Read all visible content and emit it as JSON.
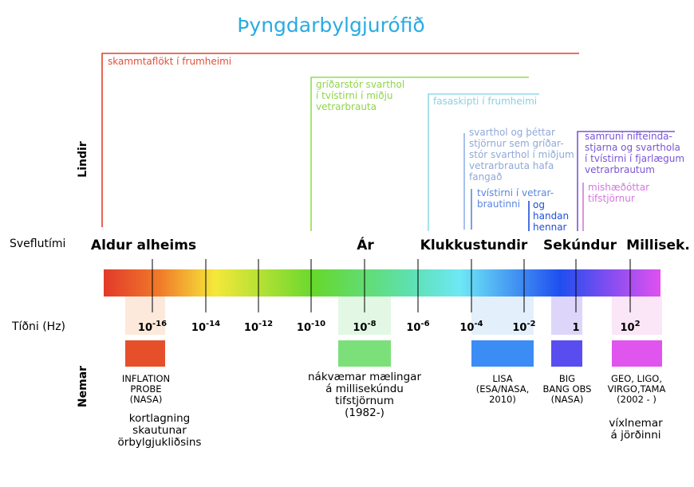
{
  "title": "Þyngdarbylgjurófið",
  "axis_labels": {
    "sources": "Lindir",
    "period": "Sveflutími",
    "frequency": "Tíðni (Hz)",
    "detectors": "Nemar"
  },
  "periods": [
    "Aldur alheims",
    "Ár",
    "Klukkustundir",
    "Sekúndur",
    "Millisek."
  ],
  "frequency_ticks": [
    {
      "base": "10",
      "exponent": "-16"
    },
    {
      "base": "10",
      "exponent": "-14"
    },
    {
      "base": "10",
      "exponent": "-12"
    },
    {
      "base": "10",
      "exponent": "-10"
    },
    {
      "base": "10",
      "exponent": "-8"
    },
    {
      "base": "10",
      "exponent": "-6"
    },
    {
      "base": "10",
      "exponent": "-4"
    },
    {
      "base": "10",
      "exponent": "-2"
    },
    {
      "base": "1"
    },
    {
      "base": "10",
      "exponent": "2"
    }
  ],
  "sources": [
    {
      "lines": [
        "skammtaflökt í frumheimi"
      ]
    },
    {
      "lines": [
        "gríðarstór svarthol",
        "í tvístirni í miðju",
        "vetrarbrauta"
      ]
    },
    {
      "lines": [
        "fasaskipti í frumheimi"
      ]
    },
    {
      "lines": [
        "svarthol og þéttar",
        "stjörnur sem gríðar-",
        "stór svarthol í miðjum",
        "vetrarbrauta hafa",
        "fangað"
      ]
    },
    {
      "lines": [
        "tvístirni í vetrar-",
        "brautinni"
      ]
    },
    {
      "lines": [
        "og",
        "handan",
        "hennar"
      ]
    },
    {
      "lines": [
        "samruni nifteinda-",
        "stjarna og svarthola",
        "í tvístirni í fjarlægum",
        "vetrarbrautum"
      ]
    },
    {
      "lines": [
        "mishæðóttar",
        "tifstjörnur"
      ]
    }
  ],
  "detectors": [
    {
      "lines": [
        "INFLATION",
        "PROBE",
        "(NASA)"
      ]
    },
    {
      "lines": [
        "nákvæmar mælingar",
        "á millisekúndu",
        "tifstjörnum",
        "(1982-)"
      ]
    },
    {
      "lines": [
        "LISA",
        "(ESA/NASA,",
        "2010)"
      ]
    },
    {
      "lines": [
        "BIG",
        "BANG OBS",
        "(NASA)"
      ]
    },
    {
      "lines": [
        "GEO, LIGO,",
        "VIRGO,TAMA",
        "(2002 - )"
      ]
    }
  ],
  "detector_notes": [
    {
      "lines": [
        "kortlagning",
        "skautunar",
        "örbylgjukliðsins"
      ]
    },
    {
      "lines": [
        "víxlnemar",
        "á jörðinni"
      ]
    }
  ]
}
